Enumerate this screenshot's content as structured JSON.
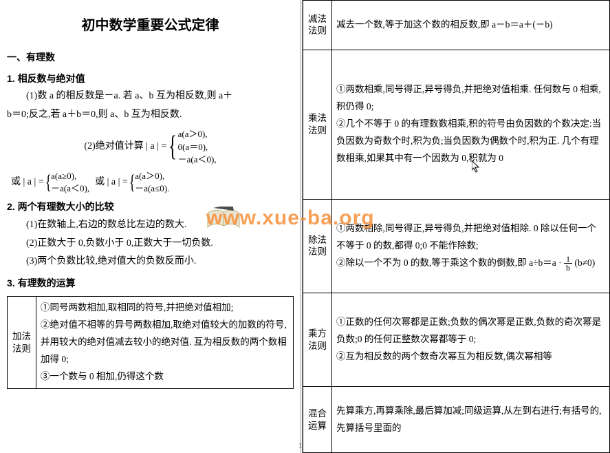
{
  "title": "初中数学重要公式定律",
  "watermark_text": "www.xue-ba.org",
  "page_number": "1",
  "left": {
    "sec1": "一、有理数",
    "t1": "1. 相反数与绝对值",
    "p1a": "(1)数 a 的相反数是－a. 若 a、b 互为相反数,则 a＋",
    "p1b": "b＝0;反之,若 a＋b＝0,则 a、b 互为相反数.",
    "abs_lead": "(2)绝对值计算 | a | =",
    "abs_c1": "a(a＞0),",
    "abs_c2": "0(a＝0),",
    "abs_c3": "－a(a＜0),",
    "or1_lhs": "或 | a | =",
    "or1_c1": "a(a≥0),",
    "or1_c2": "－a(a＜0),",
    "or2_lhs": "或 | a | =",
    "or2_c1": "a(a＞0),",
    "or2_c2": "－a(a≤0).",
    "t2": "2. 两个有理数大小的比较",
    "p2a": "(1)在数轴上,右边的数总比左边的数大.",
    "p2b": "(2)正数大于 0,负数小于 0,正数大于一切负数.",
    "p2c": "(3)两个负数比较,绝对值大的负数反而小.",
    "t3": "3. 有理数的运算",
    "add_label": "加法\n法则",
    "add_body": "①同号两数相加,取相同的符号,并把绝对值相加;\n②绝对值不相等的异号两数相加,取绝对值较大的加数的符号,并用较大的绝对值减去较小的绝对值. 互为相反数的两个数相加得 0;\n③一个数与 0 相加,仍得这个数"
  },
  "right": {
    "sub_label": "减法\n法则",
    "sub_body": "减去一个数,等于加这个数的相反数,即 a－b＝a＋(－b)",
    "mul_label": "乘法\n法则",
    "mul_body": "①两数相乘,同号得正,异号得负,并把绝对值相乘. 任何数与 0 相乘,积仍得 0;\n②几个不等于 0 的有理数数相乘,积的符号由负因数的个数决定:当负因数为奇数个时,积为负;当负因数为偶数个时,积为正. 几个有理数相乘,如果其中有一个因数为 0,积就为 0",
    "div_label": "除法\n法则",
    "div_body_pre": "①两数相除,同号得正,异号得负,并把绝对值相除. 0 除以任何一个不等于 0 的数,都得 0;0 不能作除数;\n②除以一个不为 0 的数,等于乘这个数的倒数,即 a÷b＝a · ",
    "div_body_post": " (b≠0)",
    "pow_label": "乘方\n法则",
    "pow_body": "①正数的任何次幂都是正数;负数的偶次幂是正数,负数的奇次幂是负数;0 的任何正整数次幂都等于 0;\n②互为相反数的两个数奇次幂互为相反数,偶次幂相等",
    "mix_label": "混合\n运算",
    "mix_body": "先算乘方,再算乘除,最后算加减;同级运算,从左到右进行;有括号的,先算括号里面的"
  }
}
